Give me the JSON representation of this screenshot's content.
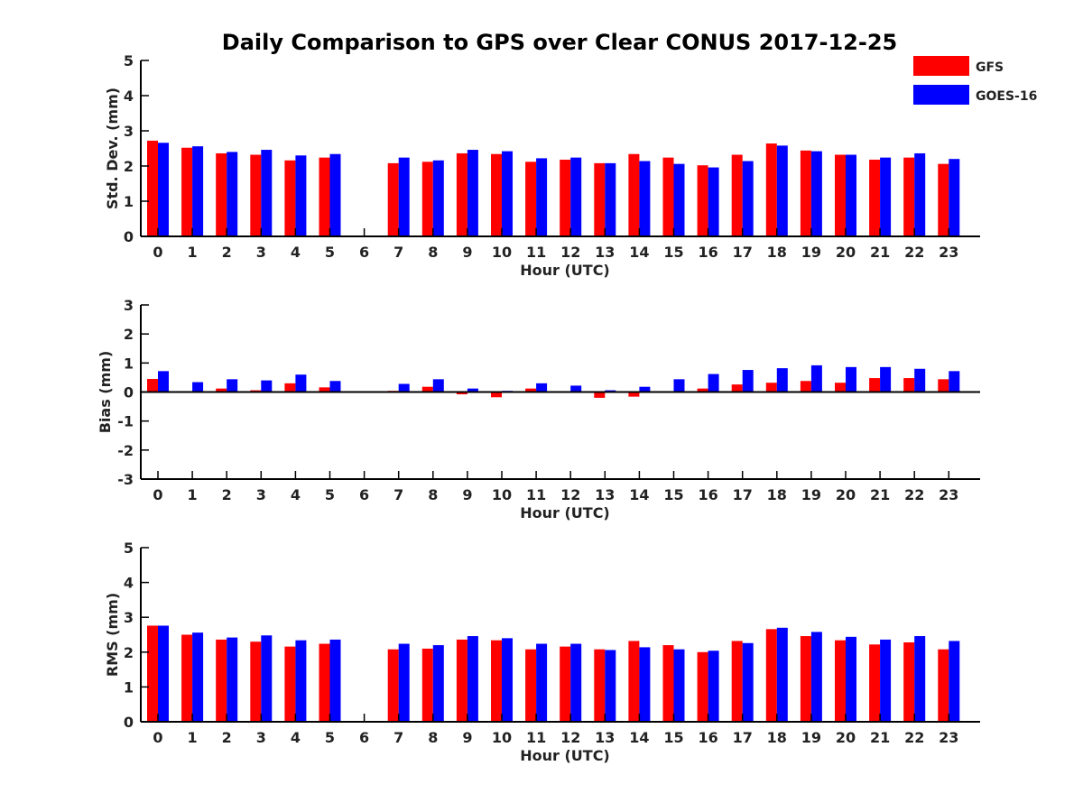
{
  "title": "Daily Comparison to GPS over Clear CONUS 2017-12-25",
  "colors": {
    "GFS": "#ff0000",
    "GOES-16": "#0000ff",
    "axis": "#000000"
  },
  "legend": {
    "placement": "top-right",
    "entries": [
      "GFS",
      "GOES-16"
    ]
  },
  "chart_data": [
    {
      "type": "bar",
      "ylabel": "Std. Dev. (mm)",
      "xlabel": "Hour (UTC)",
      "ylim": [
        0,
        5
      ],
      "yticks": [
        0,
        1,
        2,
        3,
        4,
        5
      ],
      "categories": [
        "0",
        "1",
        "2",
        "3",
        "4",
        "5",
        "6",
        "7",
        "8",
        "9",
        "10",
        "11",
        "12",
        "13",
        "14",
        "15",
        "16",
        "17",
        "18",
        "19",
        "20",
        "21",
        "22",
        "23"
      ],
      "series": [
        {
          "name": "GFS",
          "values": [
            2.72,
            2.52,
            2.36,
            2.32,
            2.16,
            2.24,
            null,
            2.08,
            2.12,
            2.36,
            2.34,
            2.12,
            2.18,
            2.08,
            2.34,
            2.24,
            2.02,
            2.32,
            2.64,
            2.44,
            2.32,
            2.18,
            2.24,
            2.06
          ]
        },
        {
          "name": "GOES-16",
          "values": [
            2.66,
            2.56,
            2.4,
            2.46,
            2.3,
            2.34,
            null,
            2.24,
            2.16,
            2.46,
            2.42,
            2.22,
            2.24,
            2.08,
            2.14,
            2.06,
            1.96,
            2.14,
            2.58,
            2.42,
            2.32,
            2.24,
            2.36,
            2.2
          ]
        }
      ]
    },
    {
      "type": "bar",
      "ylabel": "Bias (mm)",
      "xlabel": "Hour (UTC)",
      "ylim": [
        -3,
        3
      ],
      "yticks": [
        -3,
        -2,
        -1,
        0,
        1,
        2,
        3
      ],
      "categories": [
        "0",
        "1",
        "2",
        "3",
        "4",
        "5",
        "6",
        "7",
        "8",
        "9",
        "10",
        "11",
        "12",
        "13",
        "14",
        "15",
        "16",
        "17",
        "18",
        "19",
        "20",
        "21",
        "22",
        "23"
      ],
      "series": [
        {
          "name": "GFS",
          "values": [
            0.45,
            0.02,
            0.12,
            0.06,
            0.3,
            0.16,
            null,
            0.04,
            0.18,
            -0.08,
            -0.18,
            0.12,
            0.02,
            -0.2,
            -0.16,
            0.03,
            0.12,
            0.26,
            0.32,
            0.38,
            0.32,
            0.48,
            0.48,
            0.44
          ]
        },
        {
          "name": "GOES-16",
          "values": [
            0.72,
            0.34,
            0.44,
            0.4,
            0.6,
            0.38,
            null,
            0.28,
            0.44,
            0.12,
            0.04,
            0.3,
            0.22,
            0.06,
            0.18,
            0.44,
            0.62,
            0.76,
            0.82,
            0.92,
            0.86,
            0.86,
            0.8,
            0.72
          ]
        }
      ]
    },
    {
      "type": "bar",
      "ylabel": "RMS (mm)",
      "xlabel": "Hour (UTC)",
      "ylim": [
        0,
        5
      ],
      "yticks": [
        0,
        1,
        2,
        3,
        4,
        5
      ],
      "categories": [
        "0",
        "1",
        "2",
        "3",
        "4",
        "5",
        "6",
        "7",
        "8",
        "9",
        "10",
        "11",
        "12",
        "13",
        "14",
        "15",
        "16",
        "17",
        "18",
        "19",
        "20",
        "21",
        "22",
        "23"
      ],
      "series": [
        {
          "name": "GFS",
          "values": [
            2.76,
            2.5,
            2.36,
            2.3,
            2.16,
            2.24,
            null,
            2.08,
            2.1,
            2.36,
            2.34,
            2.08,
            2.16,
            2.08,
            2.32,
            2.2,
            2.0,
            2.32,
            2.66,
            2.46,
            2.34,
            2.22,
            2.28,
            2.08
          ]
        },
        {
          "name": "GOES-16",
          "values": [
            2.76,
            2.56,
            2.42,
            2.48,
            2.34,
            2.36,
            null,
            2.24,
            2.2,
            2.46,
            2.4,
            2.24,
            2.24,
            2.06,
            2.14,
            2.08,
            2.04,
            2.26,
            2.7,
            2.58,
            2.44,
            2.36,
            2.46,
            2.32
          ]
        }
      ]
    }
  ]
}
